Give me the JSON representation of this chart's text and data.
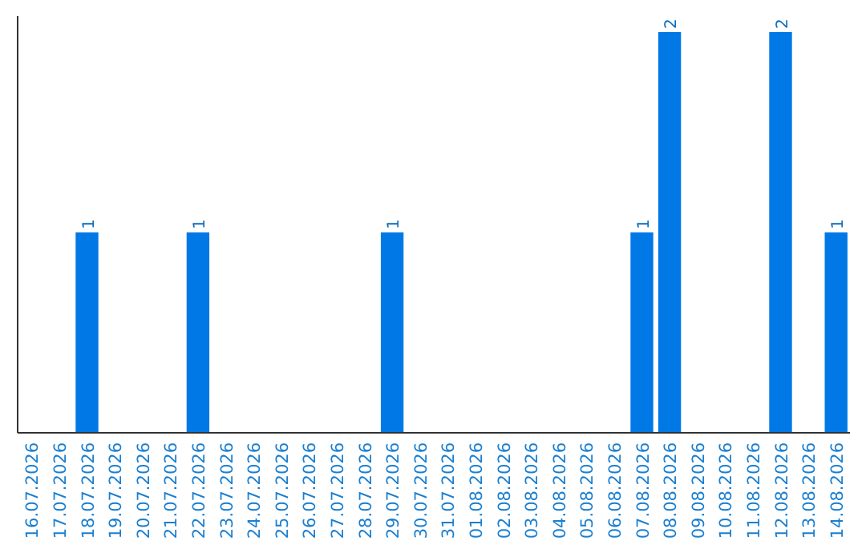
{
  "chart_data": {
    "type": "bar",
    "categories": [
      "16.07.2026",
      "17.07.2026",
      "18.07.2026",
      "19.07.2026",
      "20.07.2026",
      "21.07.2026",
      "22.07.2026",
      "23.07.2026",
      "24.07.2026",
      "25.07.2026",
      "26.07.2026",
      "27.07.2026",
      "28.07.2026",
      "29.07.2026",
      "30.07.2026",
      "31.07.2026",
      "01.08.2026",
      "02.08.2026",
      "03.08.2026",
      "04.08.2026",
      "05.08.2026",
      "06.08.2026",
      "07.08.2026",
      "08.08.2026",
      "09.08.2026",
      "10.08.2026",
      "11.08.2026",
      "12.08.2026",
      "13.08.2026",
      "14.08.2026"
    ],
    "values": [
      0,
      0,
      1,
      0,
      0,
      0,
      1,
      0,
      0,
      0,
      0,
      0,
      0,
      1,
      0,
      0,
      0,
      0,
      0,
      0,
      0,
      0,
      1,
      2,
      0,
      0,
      0,
      2,
      0,
      1
    ],
    "color": "#0079e6",
    "ylim": [
      0,
      2
    ],
    "value_labels": [
      null,
      null,
      "1",
      null,
      null,
      null,
      "1",
      null,
      null,
      null,
      null,
      null,
      null,
      "1",
      null,
      null,
      null,
      null,
      null,
      null,
      null,
      null,
      "1",
      "2",
      null,
      null,
      null,
      "2",
      null,
      "1"
    ]
  }
}
